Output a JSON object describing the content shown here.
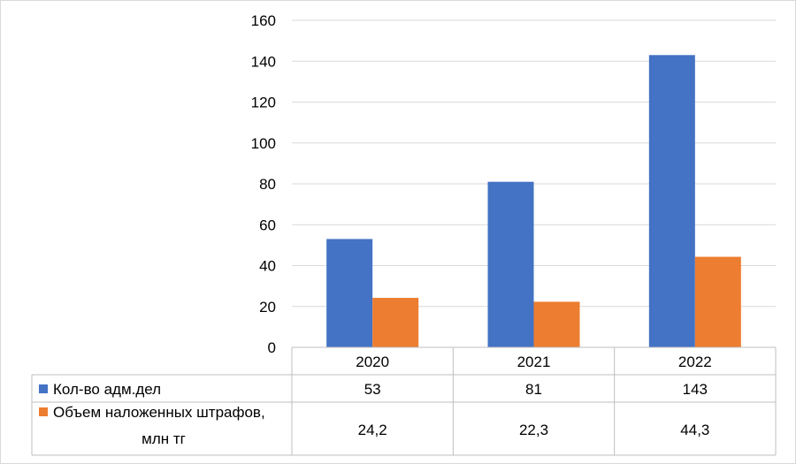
{
  "chart_data": {
    "type": "bar",
    "categories": [
      "2020",
      "2021",
      "2022"
    ],
    "series": [
      {
        "name": "Кол-во адм.дел",
        "values": [
          53,
          81,
          143
        ],
        "labels": [
          "53",
          "81",
          "143"
        ],
        "color": "#4472C4"
      },
      {
        "name": "Объем наложенных штрафов, млн тг",
        "name_lines": [
          "Объем наложенных штрафов,",
          "млн тг"
        ],
        "values": [
          24.2,
          22.3,
          44.3
        ],
        "labels": [
          "24,2",
          "22,3",
          "44,3"
        ],
        "color": "#ED7D31"
      }
    ],
    "ylim": [
      0,
      160
    ],
    "yticks": [
      "0",
      "20",
      "40",
      "60",
      "80",
      "100",
      "120",
      "140",
      "160"
    ],
    "grid": true,
    "legend": "data-table"
  }
}
